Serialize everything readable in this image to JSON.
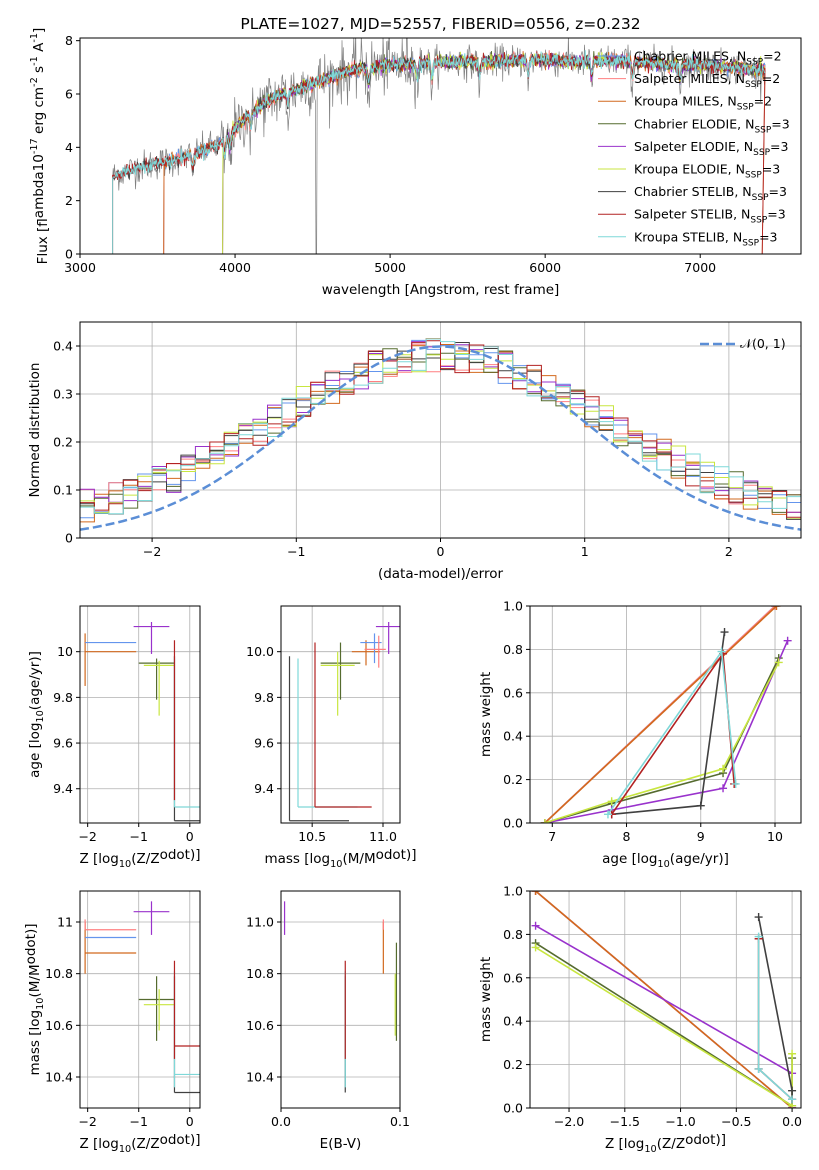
{
  "chart_data": [
    {
      "id": "spectrum",
      "type": "line",
      "title": "PLATE=1027, MJD=52557, FIBERID=0556, z=0.232",
      "xlabel": "wavelength [Angstrom, rest frame]",
      "ylabel": "Flux [f$_\\lambda$10$^{-17}$ erg cm$^{-2}$ s$^{-1}$ A$^{-1}$]",
      "xlim": [
        3000,
        7650
      ],
      "ylim": [
        0,
        8.1
      ],
      "xticks": [
        3000,
        4000,
        5000,
        6000,
        7000
      ],
      "yticks": [
        0,
        2,
        4,
        6,
        8
      ],
      "legend_position": "top-right",
      "continuum": {
        "x": [
          3200,
          3300,
          3400,
          3500,
          3600,
          3700,
          3800,
          3900,
          4000,
          4100,
          4200,
          4300,
          4400,
          4500,
          4600,
          4700,
          4800,
          4900,
          5000,
          5200,
          5400,
          5600,
          5800,
          6000,
          6200,
          6400,
          6600,
          6800,
          7000,
          7200,
          7400
        ],
        "y": [
          2.9,
          3.1,
          3.3,
          3.4,
          3.5,
          3.7,
          3.9,
          4.1,
          4.7,
          5.3,
          5.7,
          6.0,
          6.2,
          6.4,
          6.6,
          6.8,
          6.95,
          7.0,
          7.1,
          7.15,
          7.2,
          7.2,
          7.25,
          7.3,
          7.2,
          7.25,
          7.2,
          7.1,
          7.1,
          7.0,
          6.9
        ]
      },
      "series": [
        {
          "name": "Chabrier MILES, N$_{SSP}$=2",
          "color": "#6495ed",
          "type": "model",
          "start": 3540
        },
        {
          "name": "Salpeter MILES, N$_{SSP}$=2",
          "color": "#ff7f80",
          "type": "model",
          "start": 3540
        },
        {
          "name": "Kroupa MILES, N$_{SSP}$=2",
          "color": "#d2691e",
          "type": "model",
          "start": 3540
        },
        {
          "name": "Chabrier ELODIE, N$_{SSP}$=3",
          "color": "#556b2f",
          "type": "model",
          "start": 3920
        },
        {
          "name": "Salpeter ELODIE, N$_{SSP}$=3",
          "color": "#9932cc",
          "type": "model",
          "start": 3920
        },
        {
          "name": "Kroupa ELODIE, N$_{SSP}$=3",
          "color": "#c8e640",
          "type": "model",
          "start": 3920
        },
        {
          "name": "Chabrier STELIB, N$_{SSP}$=3",
          "color": "#404040",
          "type": "model",
          "start": 3210
        },
        {
          "name": "Salpeter STELIB, N$_{SSP}$=3",
          "color": "#b22222",
          "type": "model",
          "start": 3210
        },
        {
          "name": "Kroupa STELIB, N$_{SSP}$=3",
          "color": "#7fd8d8",
          "type": "model",
          "start": 3210
        }
      ],
      "data_color": "#808080"
    },
    {
      "id": "residuals",
      "type": "step",
      "xlabel": "(data-model)/error",
      "ylabel": "Normed distribution",
      "xlim": [
        -2.5,
        2.5
      ],
      "ylim": [
        0,
        0.45
      ],
      "xticks": [
        -2,
        -1,
        0,
        1,
        2
      ],
      "yticks": [
        0.0,
        0.1,
        0.2,
        0.3,
        0.4
      ],
      "legend": "$\\mathcal{N}(0, 1)$",
      "legend_position": "top-right",
      "gaussian_color": "#5b8ed6",
      "bin_width": 0.1,
      "colors": [
        "#6495ed",
        "#ff7f80",
        "#d2691e",
        "#556b2f",
        "#9932cc",
        "#c8e640",
        "#404040",
        "#b22222",
        "#7fd8d8"
      ]
    },
    {
      "id": "age_vs_Z",
      "type": "errorbar",
      "xlabel": "Z [log$_{10}$($Z/Z_\\odot$)]",
      "ylabel": "age  [log$_{10}$($age/yr$)]",
      "xlim": [
        -2.15,
        0.2
      ],
      "ylim": [
        9.25,
        10.2
      ],
      "xticks": [
        -2,
        -1,
        0
      ],
      "yticks": [
        9.4,
        9.6,
        9.8,
        10.0
      ],
      "points": [
        {
          "x": -2.05,
          "y": 10.0,
          "xl": 0.0,
          "xr": 1.0,
          "yd": 0.15,
          "yu": 0.08,
          "c": "#d2691e"
        },
        {
          "x": -2.05,
          "y": 10.04,
          "xl": 0.0,
          "xr": 1.0,
          "yd": 0.0,
          "yu": 0.0,
          "c": "#6495ed"
        },
        {
          "x": -0.75,
          "y": 10.11,
          "xl": 0.35,
          "xr": 0.35,
          "yd": 0.12,
          "yu": 0.02,
          "c": "#9932cc"
        },
        {
          "x": -0.65,
          "y": 9.95,
          "xl": 0.35,
          "xr": 0.35,
          "yd": 0.16,
          "yu": 0.02,
          "c": "#556b2f"
        },
        {
          "x": -0.6,
          "y": 9.94,
          "xl": 0.3,
          "xr": 0.3,
          "yd": 0.22,
          "yu": 0.02,
          "c": "#c8e640"
        },
        {
          "x": -0.3,
          "y": 9.26,
          "xl": 0.0,
          "xr": 0.5,
          "yd": 0.0,
          "yu": 0.72,
          "c": "#404040"
        },
        {
          "x": -0.3,
          "y": 9.32,
          "xl": 0.0,
          "xr": 0.5,
          "yd": 0.0,
          "yu": 0.65,
          "c": "#7fd8d8"
        },
        {
          "x": -0.3,
          "y": 9.35,
          "xl": 0.0,
          "xr": 0.0,
          "yd": 0.0,
          "yu": 0.7,
          "c": "#b22222"
        }
      ]
    },
    {
      "id": "age_vs_mass",
      "type": "errorbar",
      "xlabel": "mass [log$_{10}$($M/M_\\odot$)]",
      "ylabel": "",
      "xlim": [
        10.28,
        11.12
      ],
      "ylim": [
        9.25,
        10.2
      ],
      "xticks": [
        10.5,
        11.0
      ],
      "yticks": [
        9.4,
        9.6,
        9.8,
        10.0
      ],
      "points": [
        {
          "x": 10.34,
          "y": 9.26,
          "xl": 0.0,
          "xr": 0.42,
          "yd": 0.0,
          "yu": 0.72,
          "c": "#404040"
        },
        {
          "x": 10.4,
          "y": 9.32,
          "xl": 0.0,
          "xr": 0.42,
          "yd": 0.0,
          "yu": 0.65,
          "c": "#7fd8d8"
        },
        {
          "x": 10.52,
          "y": 9.32,
          "xl": 0.0,
          "xr": 0.4,
          "yd": 0.0,
          "yu": 0.72,
          "c": "#b22222"
        },
        {
          "x": 10.7,
          "y": 9.95,
          "xl": 0.14,
          "xr": 0.14,
          "yd": 0.16,
          "yu": 0.09,
          "c": "#556b2f"
        },
        {
          "x": 10.68,
          "y": 9.94,
          "xl": 0.12,
          "xr": 0.12,
          "yd": 0.22,
          "yu": 0.06,
          "c": "#c8e640"
        },
        {
          "x": 10.88,
          "y": 10.0,
          "xl": 0.1,
          "xr": 0.1,
          "yd": 0.06,
          "yu": 0.05,
          "c": "#d2691e"
        },
        {
          "x": 10.94,
          "y": 10.04,
          "xl": 0.1,
          "xr": 0.05,
          "yd": 0.09,
          "yu": 0.04,
          "c": "#6495ed"
        },
        {
          "x": 11.04,
          "y": 10.11,
          "xl": 0.09,
          "xr": 0.09,
          "yd": 0.12,
          "yu": 0.02,
          "c": "#9932cc"
        },
        {
          "x": 10.97,
          "y": 10.01,
          "xl": 0.1,
          "xr": 0.05,
          "yd": 0.08,
          "yu": 0.06,
          "c": "#ff7f80"
        }
      ]
    },
    {
      "id": "weight_vs_age",
      "type": "line",
      "xlabel": "age  [log$_{10}$($age/yr$)]",
      "ylabel": "mass weight",
      "xlim": [
        6.7,
        10.35
      ],
      "ylim": [
        0,
        1
      ],
      "xticks": [
        7,
        8,
        9,
        10
      ],
      "yticks": [
        0.0,
        0.2,
        0.4,
        0.6,
        0.8,
        1.0
      ],
      "series": [
        {
          "c": "#6495ed",
          "x": [
            6.9,
            10.0
          ],
          "y": [
            0.0,
            1.0
          ]
        },
        {
          "c": "#ff7f80",
          "x": [
            6.9,
            10.0
          ],
          "y": [
            0.0,
            1.0
          ]
        },
        {
          "c": "#d2691e",
          "x": [
            6.9,
            10.02
          ],
          "y": [
            0.0,
            1.0
          ]
        },
        {
          "c": "#556b2f",
          "x": [
            6.9,
            7.8,
            9.3,
            10.05
          ],
          "y": [
            0.0,
            0.09,
            0.23,
            0.76
          ]
        },
        {
          "c": "#9932cc",
          "x": [
            6.9,
            7.8,
            9.3,
            10.17
          ],
          "y": [
            0.0,
            0.06,
            0.16,
            0.84
          ]
        },
        {
          "c": "#c8e640",
          "x": [
            6.9,
            7.8,
            9.3,
            10.05
          ],
          "y": [
            0.0,
            0.1,
            0.25,
            0.74
          ]
        },
        {
          "c": "#404040",
          "x": [
            7.8,
            9.0,
            9.32
          ],
          "y": [
            0.04,
            0.08,
            0.88
          ]
        },
        {
          "c": "#b22222",
          "x": [
            7.8,
            9.3,
            9.45
          ],
          "y": [
            0.04,
            0.78,
            0.18
          ]
        },
        {
          "c": "#7fd8d8",
          "x": [
            7.75,
            9.28,
            9.47
          ],
          "y": [
            0.04,
            0.79,
            0.18
          ]
        }
      ]
    },
    {
      "id": "mass_vs_Z",
      "type": "errorbar",
      "xlabel": "Z [log$_{10}$($Z/Z_\\odot$)]",
      "ylabel": "mass [log$_{10}$($M/M_\\odot$)]",
      "xlim": [
        -2.15,
        0.2
      ],
      "ylim": [
        10.28,
        11.12
      ],
      "xticks": [
        -2,
        -1,
        0
      ],
      "yticks": [
        10.4,
        10.6,
        10.8,
        11.0
      ],
      "points": [
        {
          "x": -2.05,
          "y": 10.88,
          "xl": 0.0,
          "xr": 1.0,
          "yd": 0.08,
          "yu": 0.12,
          "c": "#d2691e"
        },
        {
          "x": -2.05,
          "y": 10.94,
          "xl": 0.0,
          "xr": 1.0,
          "yd": 0.0,
          "yu": 0.0,
          "c": "#6495ed"
        },
        {
          "x": -2.05,
          "y": 10.97,
          "xl": 0.0,
          "xr": 1.0,
          "yd": 0.0,
          "yu": 0.04,
          "c": "#ff7f80"
        },
        {
          "x": -0.75,
          "y": 11.04,
          "xl": 0.35,
          "xr": 0.35,
          "yd": 0.09,
          "yu": 0.04,
          "c": "#9932cc"
        },
        {
          "x": -0.65,
          "y": 10.7,
          "xl": 0.35,
          "xr": 0.35,
          "yd": 0.16,
          "yu": 0.09,
          "c": "#556b2f"
        },
        {
          "x": -0.6,
          "y": 10.68,
          "xl": 0.3,
          "xr": 0.3,
          "yd": 0.1,
          "yu": 0.06,
          "c": "#c8e640"
        },
        {
          "x": -0.3,
          "y": 10.34,
          "xl": 0.0,
          "xr": 0.5,
          "yd": 0.0,
          "yu": 0.45,
          "c": "#404040"
        },
        {
          "x": -0.3,
          "y": 10.41,
          "xl": 0.0,
          "xr": 0.5,
          "yd": 0.05,
          "yu": 0.4,
          "c": "#7fd8d8"
        },
        {
          "x": -0.3,
          "y": 10.52,
          "xl": 0.0,
          "xr": 0.5,
          "yd": 0.05,
          "yu": 0.33,
          "c": "#b22222"
        }
      ]
    },
    {
      "id": "mass_vs_EBV",
      "type": "errorbar",
      "xlabel": "E(B-V)",
      "ylabel": "",
      "xlim": [
        0.0,
        0.1
      ],
      "ylim": [
        10.28,
        11.12
      ],
      "xticks": [
        0.0,
        0.1
      ],
      "yticks": [
        10.4,
        10.6,
        10.8,
        11.0
      ],
      "points": [
        {
          "x": 0.003,
          "y": 11.04,
          "xl": 0.0,
          "xr": 0.0,
          "yd": 0.09,
          "yu": 0.04,
          "c": "#9932cc"
        },
        {
          "x": 0.054,
          "y": 10.34,
          "xl": 0.0,
          "xr": 0.0,
          "yd": 0.0,
          "yu": 0.45,
          "c": "#404040"
        },
        {
          "x": 0.054,
          "y": 10.41,
          "xl": 0.0,
          "xr": 0.0,
          "yd": 0.05,
          "yu": 0.4,
          "c": "#7fd8d8"
        },
        {
          "x": 0.054,
          "y": 10.52,
          "xl": 0.0,
          "xr": 0.0,
          "yd": 0.05,
          "yu": 0.33,
          "c": "#b22222"
        },
        {
          "x": 0.086,
          "y": 10.88,
          "xl": 0.0,
          "xr": 0.0,
          "yd": 0.08,
          "yu": 0.12,
          "c": "#d2691e"
        },
        {
          "x": 0.086,
          "y": 10.97,
          "xl": 0.0,
          "xr": 0.0,
          "yd": 0.0,
          "yu": 0.04,
          "c": "#ff7f80"
        },
        {
          "x": 0.096,
          "y": 10.68,
          "xl": 0.0,
          "xr": 0.0,
          "yd": 0.12,
          "yu": 0.12,
          "c": "#c8e640"
        },
        {
          "x": 0.097,
          "y": 10.7,
          "xl": 0.0,
          "xr": 0.0,
          "yd": 0.16,
          "yu": 0.22,
          "c": "#556b2f"
        }
      ]
    },
    {
      "id": "weight_vs_Z",
      "type": "line",
      "xlabel": "Z [log$_{10}$($Z/Z_\\odot$)]",
      "ylabel": "mass weight",
      "xlim": [
        -2.35,
        0.08
      ],
      "ylim": [
        0,
        1
      ],
      "xticks": [
        -2.0,
        -1.5,
        -1.0,
        -0.5,
        0.0
      ],
      "yticks": [
        0.0,
        0.2,
        0.4,
        0.6,
        0.8,
        1.0
      ],
      "series": [
        {
          "c": "#6495ed",
          "x": [
            -2.3,
            0.0
          ],
          "y": [
            1.0,
            0.0
          ]
        },
        {
          "c": "#ff7f80",
          "x": [
            -2.3,
            0.0
          ],
          "y": [
            1.0,
            0.0
          ]
        },
        {
          "c": "#d2691e",
          "x": [
            -2.3,
            0.0
          ],
          "y": [
            1.0,
            0.0
          ]
        },
        {
          "c": "#9932cc",
          "x": [
            -2.3,
            0.0,
            0.0
          ],
          "y": [
            0.84,
            0.16,
            0.0
          ]
        },
        {
          "c": "#556b2f",
          "x": [
            -2.3,
            0.0,
            0.0
          ],
          "y": [
            0.76,
            0.01,
            0.23
          ]
        },
        {
          "c": "#c8e640",
          "x": [
            -2.3,
            0.0,
            0.0
          ],
          "y": [
            0.74,
            0.01,
            0.25
          ]
        },
        {
          "c": "#404040",
          "x": [
            -0.3,
            0.0,
            0.0
          ],
          "y": [
            0.88,
            0.08,
            0.04
          ]
        },
        {
          "c": "#b22222",
          "x": [
            -0.3,
            -0.3,
            0.0
          ],
          "y": [
            0.78,
            0.18,
            0.04
          ]
        },
        {
          "c": "#7fd8d8",
          "x": [
            -0.3,
            -0.3,
            0.0
          ],
          "y": [
            0.79,
            0.18,
            0.04
          ]
        }
      ]
    }
  ]
}
